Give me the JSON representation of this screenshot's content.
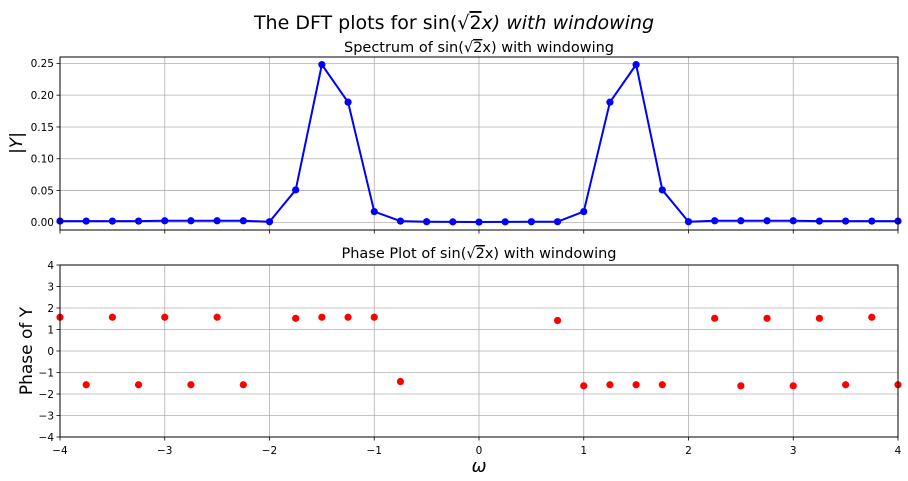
{
  "figure": {
    "suptitle_prefix": "The DFT plots for sin(",
    "suptitle_root": "2",
    "suptitle_suffix": "x) with windowing"
  },
  "chart_data": [
    {
      "type": "line",
      "title_prefix": "Spectrum of sin(",
      "title_root": "2",
      "title_suffix": "x) with windowing",
      "xlabel": "",
      "ylabel": "|Y|",
      "xlim": [
        -4,
        4
      ],
      "ylim": [
        -0.012,
        0.26
      ],
      "grid": true,
      "yticks": [
        0.0,
        0.05,
        0.1,
        0.15,
        0.2,
        0.25
      ],
      "ytick_labels": [
        "0.00",
        "0.05",
        "0.10",
        "0.15",
        "0.20",
        "0.25"
      ],
      "color": "#0000ff",
      "marker": "circle",
      "x": [
        -4,
        -3.75,
        -3.5,
        -3.25,
        -3,
        -2.75,
        -2.5,
        -2.25,
        -2,
        -1.75,
        -1.5,
        -1.25,
        -1,
        -0.75,
        -0.5,
        -0.25,
        0,
        0.25,
        0.5,
        0.75,
        1,
        1.25,
        1.5,
        1.75,
        2,
        2.25,
        2.5,
        2.75,
        3,
        3.25,
        3.5,
        3.75,
        4
      ],
      "y": [
        0.002,
        0.002,
        0.002,
        0.002,
        0.0025,
        0.0025,
        0.0025,
        0.0025,
        0.001,
        0.051,
        0.248,
        0.189,
        0.017,
        0.002,
        0.001,
        0.0008,
        0.0005,
        0.0008,
        0.001,
        0.001,
        0.017,
        0.189,
        0.248,
        0.051,
        0.001,
        0.0025,
        0.0025,
        0.0025,
        0.0025,
        0.002,
        0.002,
        0.002,
        0.002
      ]
    },
    {
      "type": "scatter",
      "title_prefix": "Phase Plot of sin(",
      "title_root": "2",
      "title_suffix": "x) with windowing",
      "xlabel": "ω",
      "ylabel": "Phase of Y",
      "xlim": [
        -4,
        4
      ],
      "ylim": [
        -4,
        4
      ],
      "grid": true,
      "xticks": [
        -4,
        -3,
        -2,
        -1,
        0,
        1,
        2,
        3,
        4
      ],
      "xtick_labels": [
        "−4",
        "−3",
        "−2",
        "−1",
        "0",
        "1",
        "2",
        "3",
        "4"
      ],
      "yticks": [
        -4,
        -3,
        -2,
        -1,
        0,
        1,
        2,
        3,
        4
      ],
      "ytick_labels": [
        "−4",
        "−3",
        "−2",
        "−1",
        "0",
        "1",
        "2",
        "3",
        "4"
      ],
      "color": "#ff0000",
      "marker": "circle",
      "x": [
        -4,
        -3.75,
        -3.5,
        -3.25,
        -3,
        -2.75,
        -2.5,
        -2.25,
        -1.75,
        -1.5,
        -1.25,
        -1,
        -0.75,
        0.75,
        1,
        1.25,
        1.5,
        1.75,
        2.25,
        2.5,
        2.75,
        3,
        3.25,
        3.5,
        3.75,
        4
      ],
      "y": [
        1.57,
        -1.57,
        1.57,
        -1.57,
        1.57,
        -1.57,
        1.57,
        -1.57,
        1.52,
        1.57,
        1.57,
        1.57,
        -1.42,
        1.42,
        -1.62,
        -1.57,
        -1.57,
        -1.57,
        1.52,
        -1.62,
        1.52,
        -1.62,
        1.52,
        -1.57,
        1.57,
        -1.57
      ]
    }
  ]
}
